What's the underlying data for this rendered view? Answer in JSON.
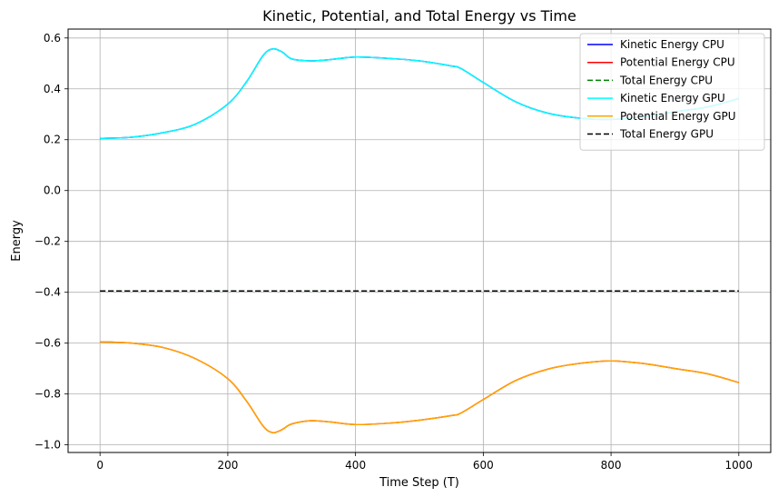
{
  "chart_data": {
    "type": "line",
    "title": "Kinetic, Potential, and Total Energy vs Time",
    "xlabel": "Time Step (T)",
    "ylabel": "Energy",
    "xlim": [
      -50,
      1050
    ],
    "ylim": [
      -1.03,
      0.635
    ],
    "xticks": [
      0,
      200,
      400,
      600,
      800,
      1000
    ],
    "xtick_labels": [
      "0",
      "200",
      "400",
      "600",
      "800",
      "1000"
    ],
    "yticks": [
      -1.0,
      -0.8,
      -0.6,
      -0.4,
      -0.2,
      0.0,
      0.2,
      0.4,
      0.6
    ],
    "ytick_labels": [
      "−1.0",
      "−0.8",
      "−0.6",
      "−0.4",
      "−0.2",
      "0.0",
      "0.2",
      "0.4",
      "0.6"
    ],
    "grid": true,
    "legend_position": "top-right",
    "x": [
      0,
      50,
      100,
      150,
      200,
      230,
      255,
      270,
      285,
      300,
      330,
      360,
      400,
      450,
      500,
      550,
      565,
      600,
      650,
      700,
      750,
      800,
      850,
      900,
      950,
      1000
    ],
    "series": [
      {
        "name": "Kinetic Energy CPU",
        "color": "#0000ff",
        "dash": false,
        "values": [
          0.205,
          0.21,
          0.228,
          0.262,
          0.34,
          0.43,
          0.53,
          0.557,
          0.545,
          0.518,
          0.51,
          0.515,
          0.525,
          0.52,
          0.51,
          0.49,
          0.48,
          0.425,
          0.35,
          0.305,
          0.285,
          0.28,
          0.29,
          0.31,
          0.328,
          0.362
        ]
      },
      {
        "name": "Potential Energy CPU",
        "color": "#ff0000",
        "dash": false,
        "values": [
          -0.595,
          -0.6,
          -0.618,
          -0.662,
          -0.74,
          -0.83,
          -0.925,
          -0.952,
          -0.94,
          -0.918,
          -0.905,
          -0.91,
          -0.92,
          -0.915,
          -0.903,
          -0.885,
          -0.875,
          -0.822,
          -0.748,
          -0.703,
          -0.68,
          -0.67,
          -0.68,
          -0.7,
          -0.72,
          -0.755
        ]
      },
      {
        "name": "Total Energy CPU",
        "color": "#008000",
        "dash": true,
        "values": [
          -0.395,
          -0.395,
          -0.395,
          -0.395,
          -0.395,
          -0.395,
          -0.395,
          -0.395,
          -0.395,
          -0.395,
          -0.395,
          -0.395,
          -0.395,
          -0.395,
          -0.395,
          -0.395,
          -0.395,
          -0.395,
          -0.395,
          -0.395,
          -0.395,
          -0.395,
          -0.395,
          -0.395,
          -0.395,
          -0.395
        ]
      },
      {
        "name": "Kinetic Energy GPU",
        "color": "#00ffff",
        "dash": false,
        "values": [
          0.205,
          0.21,
          0.228,
          0.262,
          0.34,
          0.43,
          0.53,
          0.557,
          0.545,
          0.518,
          0.51,
          0.515,
          0.525,
          0.52,
          0.51,
          0.49,
          0.48,
          0.425,
          0.35,
          0.305,
          0.285,
          0.28,
          0.29,
          0.31,
          0.328,
          0.362
        ]
      },
      {
        "name": "Potential Energy GPU",
        "color": "#ffa500",
        "dash": false,
        "values": [
          -0.595,
          -0.6,
          -0.618,
          -0.662,
          -0.74,
          -0.83,
          -0.925,
          -0.952,
          -0.94,
          -0.918,
          -0.905,
          -0.91,
          -0.92,
          -0.915,
          -0.903,
          -0.885,
          -0.875,
          -0.822,
          -0.748,
          -0.703,
          -0.68,
          -0.67,
          -0.68,
          -0.7,
          -0.72,
          -0.755
        ]
      },
      {
        "name": "Total Energy GPU",
        "color": "#000000",
        "dash": true,
        "values": [
          -0.395,
          -0.395,
          -0.395,
          -0.395,
          -0.395,
          -0.395,
          -0.395,
          -0.395,
          -0.395,
          -0.395,
          -0.395,
          -0.395,
          -0.395,
          -0.395,
          -0.395,
          -0.395,
          -0.395,
          -0.395,
          -0.395,
          -0.395,
          -0.395,
          -0.395,
          -0.395,
          -0.395,
          -0.395,
          -0.395
        ]
      }
    ]
  }
}
